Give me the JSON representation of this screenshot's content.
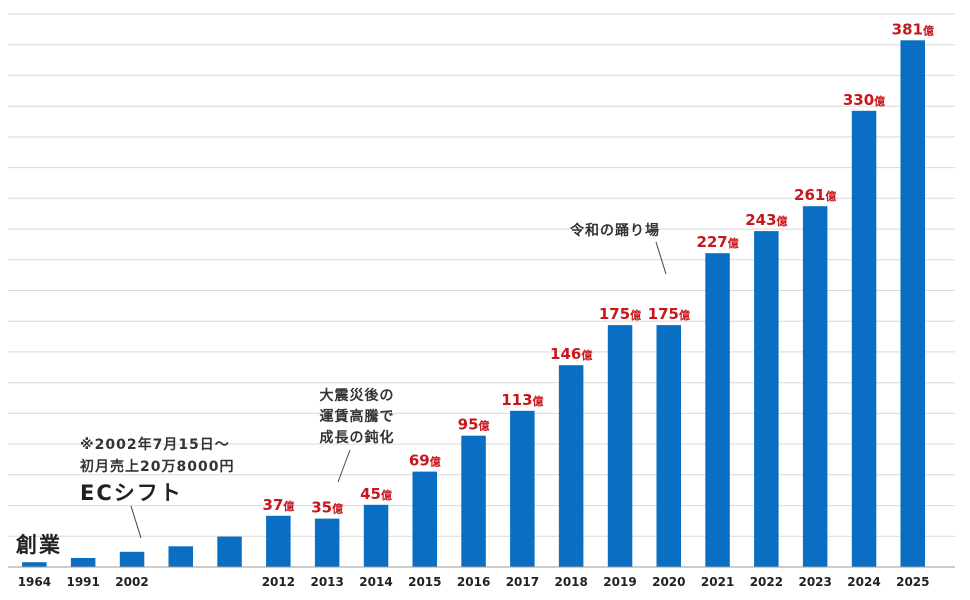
{
  "chart_data": {
    "type": "bar",
    "title": "",
    "xlabel": "",
    "ylabel": "",
    "ylim": [
      0,
      400
    ],
    "grid": true,
    "bar_color": "#0a6fc2",
    "label_color": "#c8161d",
    "categories": [
      "1964",
      "1991",
      "2002",
      "",
      "",
      "2012",
      "2013",
      "2014",
      "2015",
      "2016",
      "2017",
      "2018",
      "2019",
      "2020",
      "2021",
      "2022",
      "2023",
      "2024",
      "2025"
    ],
    "values": [
      3.5,
      6.5,
      11,
      15,
      22,
      37,
      35,
      45,
      69,
      95,
      113,
      146,
      175,
      175,
      227,
      243,
      261,
      330,
      381
    ],
    "data_labels": [
      "",
      "",
      "",
      "",
      "",
      "37",
      "35",
      "45",
      "69",
      "95",
      "113",
      "146",
      "175",
      "175",
      "227",
      "243",
      "261",
      "330",
      "381"
    ],
    "unit_label": "億",
    "annotations": [
      {
        "text": "創業",
        "category_index": 0,
        "style": "big"
      },
      {
        "lines": [
          "※2002年7月15日～",
          "初月売上20万8000円"
        ],
        "big_line": "ECシフト",
        "category_index": 2
      },
      {
        "lines": [
          "大震災後の",
          "運賃高騰で",
          "成長の鈍化"
        ],
        "category_index": 6
      },
      {
        "lines": [
          "令和の踊り場"
        ],
        "category_index": 13
      }
    ]
  }
}
